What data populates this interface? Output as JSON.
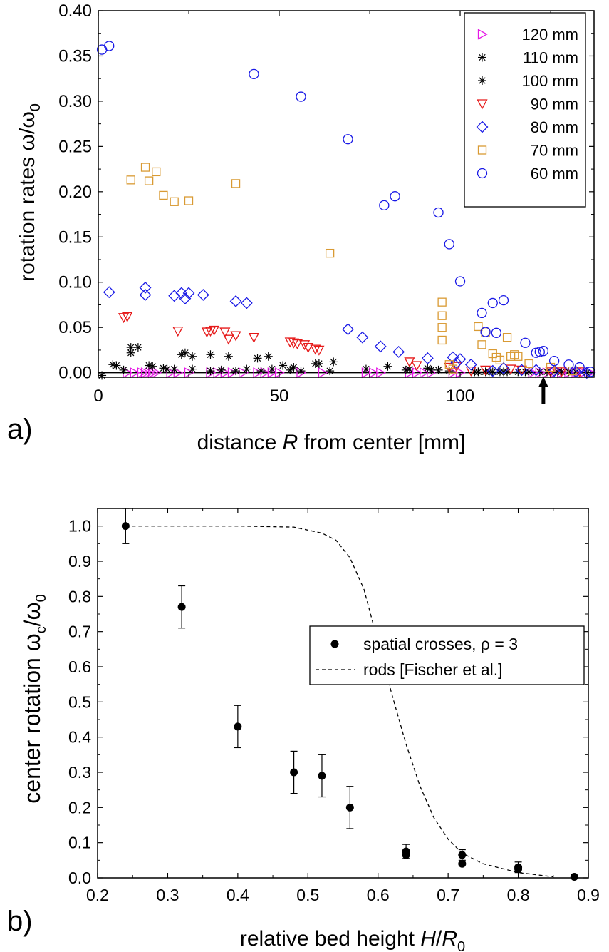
{
  "chart_data": [
    {
      "panel_label": "a)",
      "type": "scatter",
      "xlabel_parts": [
        "distance ",
        "R",
        " from center [mm]"
      ],
      "ylabel_parts": [
        "rotation rates ",
        "ω/ω",
        "0"
      ],
      "xlim": [
        0,
        137
      ],
      "ylim": [
        -0.005,
        0.4
      ],
      "xticks": [
        0,
        50,
        100
      ],
      "yticks": [
        0.0,
        0.05,
        0.1,
        0.15,
        0.2,
        0.25,
        0.3,
        0.35,
        0.4
      ],
      "ytick_labels": [
        "0.00",
        "0.05",
        "0.10",
        "0.15",
        "0.20",
        "0.25",
        "0.30",
        "0.35",
        "0.40"
      ],
      "legend_position": "top-right",
      "zero_line": true,
      "arrow_marker_x": 123,
      "series": [
        {
          "name": "120 mm",
          "marker": "triangle-right",
          "color": "#e619e6",
          "x": [
            8,
            10,
            12,
            13,
            14,
            15,
            16,
            20,
            22,
            25,
            31,
            33,
            35,
            37,
            40,
            44,
            46,
            48,
            50,
            56,
            62,
            74,
            76,
            78,
            86,
            88,
            90,
            92,
            98,
            100,
            120,
            122,
            124,
            126,
            128,
            130,
            132,
            134,
            136
          ],
          "y": [
            0,
            0,
            0,
            0,
            0,
            0,
            0,
            0,
            0,
            0,
            0,
            0,
            0,
            0,
            0,
            0,
            0,
            0,
            0,
            0,
            0,
            0,
            0,
            0,
            0,
            0,
            0,
            0,
            0,
            0,
            0,
            0,
            0,
            0,
            0,
            0,
            0,
            0,
            0
          ]
        },
        {
          "name": "110 mm",
          "marker": "star",
          "color": "#000000",
          "x": [
            1,
            5,
            7,
            9,
            11,
            15,
            18,
            21,
            24,
            26,
            31,
            34,
            38,
            41,
            45,
            48,
            53,
            56,
            60,
            64,
            80,
            85,
            92,
            104,
            108,
            112,
            118,
            124,
            128,
            132,
            135
          ],
          "y": [
            -0.003,
            0.008,
            0.003,
            0.028,
            0.028,
            0.007,
            0.005,
            0.004,
            0.022,
            0.004,
            0.002,
            0.003,
            0.002,
            0.004,
            0.002,
            0.004,
            0.003,
            0.002,
            0.01,
            0.002,
            0.007,
            0.003,
            0.003,
            0.001,
            0.001,
            0.001,
            0.001,
            0.001,
            0.001,
            0.001,
            0.0
          ]
        },
        {
          "name": "100 mm",
          "marker": "star",
          "color": "#000000",
          "x": [
            4,
            9,
            14,
            19,
            23,
            26,
            31,
            36,
            44,
            47,
            51,
            54,
            61,
            65,
            74,
            86,
            91,
            94,
            97,
            105,
            107,
            109,
            111,
            113,
            116,
            119,
            122,
            127,
            130
          ],
          "y": [
            0.009,
            0.022,
            0.008,
            0.004,
            0.02,
            0.018,
            0.02,
            0.018,
            0.016,
            0.018,
            0.008,
            0.006,
            0.01,
            0.012,
            0.004,
            0.004,
            0.005,
            0.003,
            0.002,
            0.001,
            0.001,
            0.001,
            0.001,
            0.001,
            0.001,
            0.001,
            0.001,
            0.001,
            0.001
          ]
        },
        {
          "name": "90 mm",
          "marker": "triangle-down",
          "color": "#e61919",
          "x": [
            7,
            8,
            22,
            30,
            31,
            32,
            35,
            36,
            38,
            43,
            53,
            54,
            55,
            57,
            58,
            60,
            61,
            86,
            88,
            97,
            99,
            103,
            107,
            114,
            117,
            125,
            128,
            133
          ],
          "y": [
            0.061,
            0.062,
            0.046,
            0.045,
            0.046,
            0.047,
            0.045,
            0.037,
            0.041,
            0.039,
            0.034,
            0.033,
            0.032,
            0.031,
            0.028,
            0.026,
            0.025,
            0.012,
            0.008,
            0.006,
            0.007,
            0.002,
            0.003,
            0.004,
            0.003,
            0.001,
            0.001,
            0.001
          ]
        },
        {
          "name": "80 mm",
          "marker": "diamond",
          "color": "#1919e6",
          "x": [
            3,
            13,
            13,
            21,
            23,
            24,
            25,
            29,
            38,
            41,
            69,
            73,
            78,
            83,
            91,
            98,
            99,
            100,
            103,
            109,
            112,
            117,
            121,
            126,
            132,
            135
          ],
          "y": [
            0.089,
            0.094,
            0.086,
            0.085,
            0.088,
            0.082,
            0.088,
            0.086,
            0.079,
            0.077,
            0.048,
            0.039,
            0.029,
            0.023,
            0.016,
            0.017,
            0.011,
            0.015,
            0.009,
            0.002,
            0.005,
            0.003,
            0.003,
            0.002,
            0.001,
            0.0
          ]
        },
        {
          "name": "70 mm",
          "marker": "square",
          "color": "#d99a33",
          "x": [
            9,
            13,
            14,
            16,
            18,
            21,
            25,
            38,
            64,
            95,
            95,
            95,
            95,
            97,
            98,
            105,
            106,
            107,
            109,
            110,
            111,
            113,
            114,
            115,
            116,
            119,
            125,
            131
          ],
          "y": [
            0.213,
            0.227,
            0.212,
            0.222,
            0.196,
            0.189,
            0.19,
            0.209,
            0.132,
            0.078,
            0.063,
            0.05,
            0.036,
            0.009,
            0.004,
            0.051,
            0.031,
            0.044,
            0.021,
            0.017,
            0.014,
            0.039,
            0.018,
            0.02,
            0.018,
            0.01,
            0.006,
            0.002
          ]
        },
        {
          "name": "60 mm",
          "marker": "circle",
          "color": "#1919e6",
          "x": [
            1,
            3,
            43,
            56,
            69,
            79,
            82,
            94,
            97,
            100,
            106,
            107,
            109,
            110,
            112,
            118,
            121,
            122,
            123,
            126,
            130,
            133,
            136
          ],
          "y": [
            0.357,
            0.361,
            0.33,
            0.305,
            0.258,
            0.185,
            0.195,
            0.177,
            0.142,
            0.101,
            0.066,
            0.045,
            0.077,
            0.044,
            0.08,
            0.033,
            0.022,
            0.023,
            0.024,
            0.013,
            0.009,
            0.006,
            0.001
          ]
        }
      ]
    },
    {
      "panel_label": "b)",
      "type": "scatter",
      "xlabel_parts": [
        "relative bed height ",
        "H",
        "/",
        "R",
        "0"
      ],
      "ylabel_parts": [
        "center rotation ",
        "ω",
        "c",
        "/ω",
        "0"
      ],
      "xlim": [
        0.2,
        0.9
      ],
      "ylim": [
        0.0,
        1.05
      ],
      "xticks": [
        0.2,
        0.3,
        0.4,
        0.5,
        0.6,
        0.7,
        0.8,
        0.9
      ],
      "xtick_labels": [
        "0.2",
        "0.3",
        "0.4",
        "0.5",
        "0.6",
        "0.7",
        "0.8",
        "0.9"
      ],
      "yticks": [
        0.0,
        0.1,
        0.2,
        0.3,
        0.4,
        0.5,
        0.6,
        0.7,
        0.8,
        0.9,
        1.0
      ],
      "ytick_labels": [
        "0.0",
        "0.1",
        "0.2",
        "0.3",
        "0.4",
        "0.5",
        "0.6",
        "0.7",
        "0.8",
        "0.9",
        "1.0"
      ],
      "legend_position": "right",
      "series": [
        {
          "name": "spatial crosses, ρ = 3",
          "marker": "filled-circle",
          "color": "#000000",
          "x": [
            0.24,
            0.32,
            0.4,
            0.48,
            0.52,
            0.56,
            0.64,
            0.64,
            0.72,
            0.72,
            0.8,
            0.8,
            0.88
          ],
          "y": [
            1.0,
            0.77,
            0.43,
            0.3,
            0.29,
            0.2,
            0.075,
            0.065,
            0.065,
            0.04,
            0.03,
            0.025,
            0.003
          ],
          "err": [
            0.05,
            0.06,
            0.06,
            0.06,
            0.06,
            0.06,
            0.02,
            0.0,
            0.015,
            0.0,
            0.015,
            0.0,
            0.0
          ]
        },
        {
          "name": "rods [Fischer et al.]",
          "line": "dashed",
          "color": "#000000",
          "x": [
            0.24,
            0.4,
            0.48,
            0.52,
            0.54,
            0.56,
            0.58,
            0.6,
            0.62,
            0.64,
            0.66,
            0.68,
            0.7,
            0.72,
            0.75,
            0.8,
            0.85
          ],
          "y": [
            1.0,
            1.0,
            0.997,
            0.98,
            0.96,
            0.91,
            0.82,
            0.67,
            0.52,
            0.38,
            0.26,
            0.17,
            0.11,
            0.07,
            0.04,
            0.015,
            0.003
          ]
        }
      ]
    }
  ]
}
